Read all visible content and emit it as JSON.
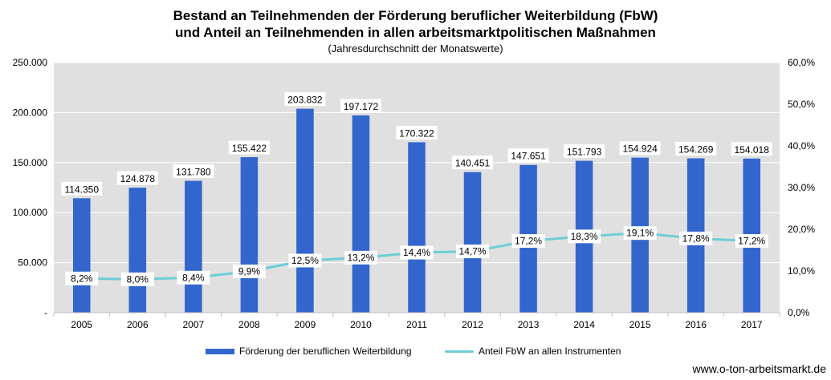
{
  "title_line1": "Bestand an Teilnehmenden der Förderung beruflicher Weiterbildung (FbW)",
  "title_line2": "und Anteil an Teilnehmenden in allen arbeitsmarktpolitischen Maßnahmen",
  "subtitle": "(Jahresdurchschnitt  der Monatswerte)",
  "source": "www.o-ton-arbeitsmarkt.de",
  "colors": {
    "bar": "#3366cc",
    "line": "#6ccfd6",
    "plot_bg": "#e0e0e0",
    "grid": "#ffffff"
  },
  "chart_data": {
    "type": "bar+line",
    "categories": [
      "2005",
      "2006",
      "2007",
      "2008",
      "2009",
      "2010",
      "2011",
      "2012",
      "2013",
      "2014",
      "2015",
      "2016",
      "2017"
    ],
    "series": [
      {
        "name": "Förderung der beruflichen Weiterbildung",
        "type": "bar",
        "axis": "left",
        "values": [
          114350,
          124878,
          131780,
          155422,
          203832,
          197172,
          170322,
          140451,
          147651,
          151793,
          154924,
          154269,
          154018
        ],
        "labels": [
          "114.350",
          "124.878",
          "131.780",
          "155.422",
          "203.832",
          "197.172",
          "170.322",
          "140.451",
          "147.651",
          "151.793",
          "154.924",
          "154.269",
          "154.018"
        ]
      },
      {
        "name": "Anteil FbW an allen Instrumenten",
        "type": "line",
        "axis": "right",
        "values": [
          8.2,
          8.0,
          8.4,
          9.9,
          12.5,
          13.2,
          14.4,
          14.7,
          17.2,
          18.3,
          19.1,
          17.8,
          17.2
        ],
        "labels": [
          "8,2%",
          "8,0%",
          "8,4%",
          "9,9%",
          "12,5%",
          "13,2%",
          "14,4%",
          "14,7%",
          "17,2%",
          "18,3%",
          "19,1%",
          "17,8%",
          "17,2%"
        ]
      }
    ],
    "y_left": {
      "ylim": [
        0,
        250000
      ],
      "ticks": [
        "-",
        "50.000",
        "100.000",
        "150.000",
        "200.000",
        "250.000"
      ]
    },
    "y_right": {
      "ylim": [
        0,
        60
      ],
      "ticks": [
        "0,0%",
        "10,0%",
        "20,0%",
        "30,0%",
        "40,0%",
        "50,0%",
        "60,0%"
      ]
    },
    "grid": true,
    "legend_position": "bottom"
  }
}
